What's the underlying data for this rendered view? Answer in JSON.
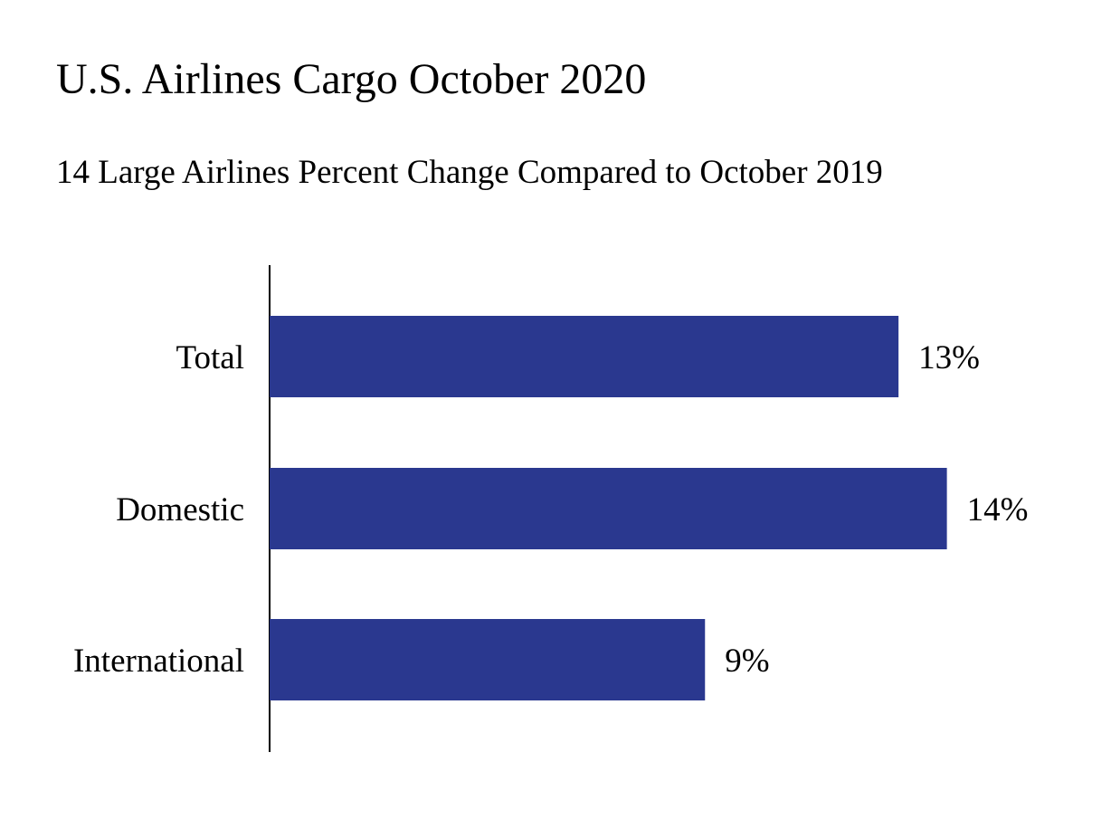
{
  "chart_data": {
    "type": "bar",
    "orientation": "horizontal",
    "title": "U.S. Airlines Cargo October 2020",
    "subtitle": "14 Large Airlines Percent Change Compared to October 2019",
    "categories": [
      "Total",
      "Domestic",
      "International"
    ],
    "values": [
      13,
      14,
      9
    ],
    "value_labels": [
      "13%",
      "14%",
      "9%"
    ],
    "unit": "%",
    "xlim": [
      0,
      14.4
    ],
    "bar_color": "#2a388f",
    "axis_color": "#000000",
    "grid": false,
    "legend": "none"
  }
}
